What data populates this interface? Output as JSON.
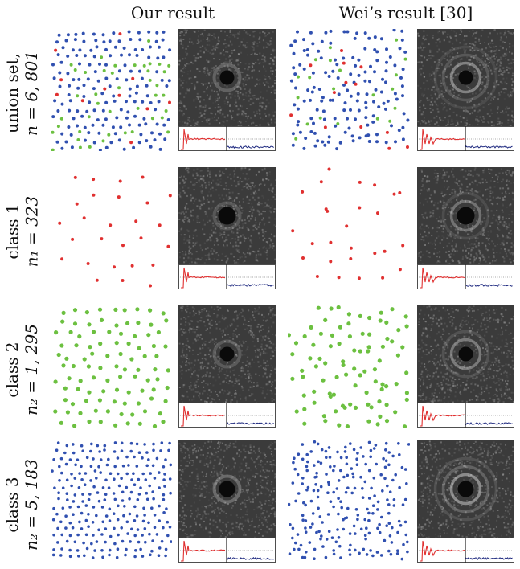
{
  "headers": {
    "left": "Our result",
    "right": "Wei’s result [30]"
  },
  "rows": [
    {
      "line1": "union set,",
      "line2": "n = 6, 801",
      "colors": [
        "#3050b0",
        "#6cc040",
        "#e03030"
      ],
      "weights": [
        0.76,
        0.19,
        0.05
      ]
    },
    {
      "line1": "class 1",
      "line2": "n₁ = 323",
      "colors": [
        "#e03030"
      ],
      "weights": [
        1
      ]
    },
    {
      "line1": "class 2",
      "line2": "n₂ = 1, 295",
      "colors": [
        "#6cc040"
      ],
      "weights": [
        1
      ]
    },
    {
      "line1": "class 3",
      "line2": "n₂ = 5, 183",
      "colors": [
        "#3050b0"
      ],
      "weights": [
        1
      ]
    }
  ],
  "palette": {
    "red": "#e03030",
    "green": "#6cc040",
    "blue": "#1f2a80",
    "spectrum_bg": "#3b3b3b"
  }
}
